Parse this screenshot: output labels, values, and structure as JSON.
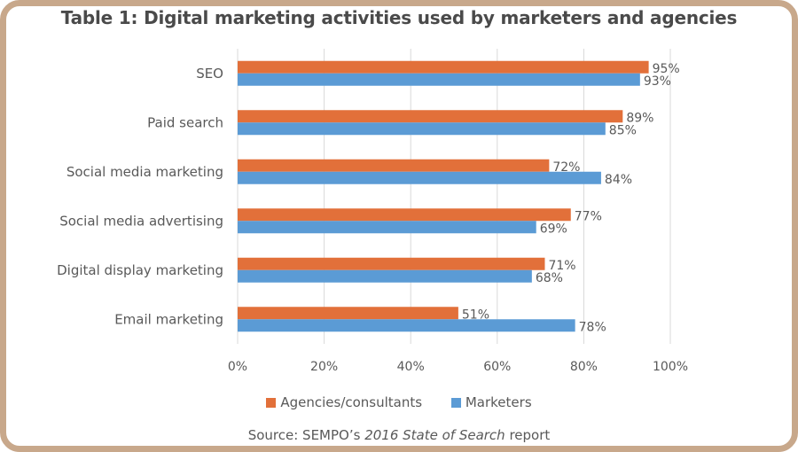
{
  "chart_data": {
    "type": "bar",
    "orientation": "horizontal",
    "title": "Table 1: Digital marketing activities used by marketers and agencies",
    "categories": [
      "SEO",
      "Paid search",
      "Social media marketing",
      "Social media advertising",
      "Digital display marketing",
      "Email marketing"
    ],
    "series": [
      {
        "name": "Agencies/consultants",
        "color": "#e2703a",
        "values": [
          95,
          89,
          72,
          77,
          71,
          51
        ],
        "labels": [
          "95%",
          "89%",
          "72%",
          "77%",
          "71%",
          "51%"
        ]
      },
      {
        "name": "Marketers",
        "color": "#5b9bd5",
        "values": [
          93,
          85,
          84,
          69,
          68,
          78
        ],
        "labels": [
          "93%",
          "85%",
          "84%",
          "69%",
          "68%",
          "78%"
        ]
      }
    ],
    "xlim": [
      0,
      100
    ],
    "xticks": [
      "0%",
      "20%",
      "40%",
      "60%",
      "80%",
      "100%"
    ],
    "grid": true,
    "legend_position": "bottom",
    "source": {
      "prefix": "Source: SEMPO’s ",
      "italic": "2016 State of Search",
      "suffix": " report"
    }
  },
  "colors": {
    "frame": "#c8a88b",
    "grid": "#d9d9d9",
    "text": "#595959"
  }
}
